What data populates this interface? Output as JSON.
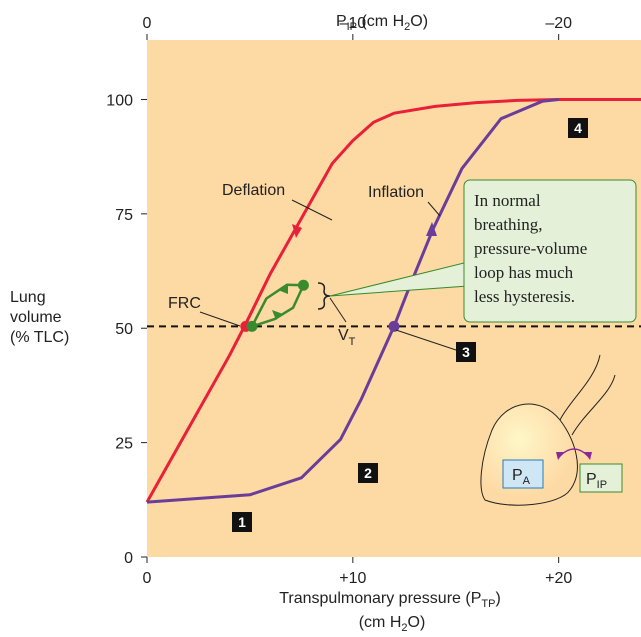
{
  "chart_data": {
    "type": "line",
    "x_label": {
      "line1": [
        "Transpulmonary pressure (P",
        "TP",
        ")"
      ],
      "line2": [
        "(cm H",
        "2",
        "O)"
      ]
    },
    "x2_label": [
      "P",
      "IP",
      " (cm H",
      "2",
      "O)"
    ],
    "y_label": [
      "Lung",
      "volume",
      "(% TLC)"
    ],
    "xlim": [
      0,
      24
    ],
    "xticks": [
      0,
      {
        "value": 10,
        "label": "+10"
      },
      {
        "value": 20,
        "label": "+20"
      }
    ],
    "x2lim": [
      0,
      -24
    ],
    "x2ticks": [
      0,
      {
        "value": -10,
        "label": "–10"
      },
      {
        "value": -20,
        "label": "–20"
      }
    ],
    "ylim": [
      0,
      113
    ],
    "yticks": [
      0,
      25,
      50,
      75,
      100
    ],
    "background": "#fdd9a3",
    "series": [
      {
        "name": "Deflation",
        "color": "#e8203a",
        "x": [
          0,
          1,
          2,
          3,
          4,
          4.8,
          6,
          7,
          8,
          9,
          10,
          11,
          12,
          14,
          16,
          18,
          20,
          24
        ],
        "y": [
          12,
          20,
          28,
          36,
          44,
          51,
          62,
          70,
          78,
          86,
          91,
          95,
          97,
          98.5,
          99.3,
          99.8,
          100,
          100
        ]
      },
      {
        "name": "Inflation",
        "color": "#6b3d9a",
        "x": [
          0,
          5,
          7.5,
          9.4,
          10.4,
          12,
          12.8,
          13.9,
          15.3,
          17.2,
          19.2,
          20
        ],
        "y": [
          12,
          13.6,
          17.3,
          25.7,
          34.4,
          50.4,
          59.6,
          71.7,
          84.9,
          95.8,
          99.6,
          100
        ]
      },
      {
        "color": "#3a8a2e",
        "x": [
          5.1,
          5.8,
          6.8,
          7.6
        ],
        "y": [
          50.4,
          56.5,
          59.5,
          59.4
        ]
      },
      {
        "color": "#3a8a2e",
        "x": [
          5.1,
          6.2,
          7.1,
          7.6
        ],
        "y": [
          50.4,
          52,
          54.5,
          59.4
        ]
      }
    ],
    "points": [
      {
        "x": 4.8,
        "y": 50.4,
        "color": "#e8203a"
      },
      {
        "x": 5.1,
        "y": 50.4,
        "color": "#3a8a2e"
      },
      {
        "x": 7.6,
        "y": 59.4,
        "color": "#3a8a2e"
      },
      {
        "x": 12,
        "y": 50.4,
        "color": "#6b3d9a"
      }
    ],
    "reference_line": {
      "label": "FRC",
      "y": 50.4
    },
    "tidal_label": [
      "V",
      "T"
    ],
    "callout": [
      "In normal",
      "breathing,",
      "pressure-volume",
      "loop has much",
      "less hysteresis."
    ],
    "steps": [
      "1",
      "2",
      "3",
      "4"
    ],
    "alveolar_label": [
      "P",
      "A"
    ],
    "pleural_label": [
      "P",
      "IP"
    ]
  }
}
